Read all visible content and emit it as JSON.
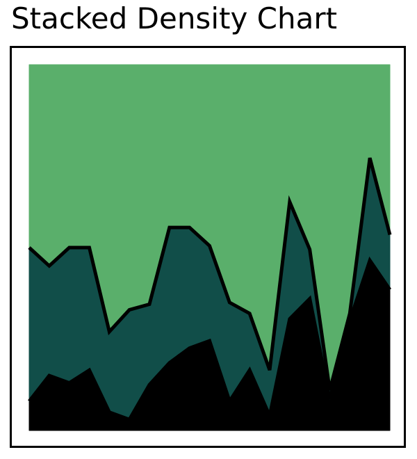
{
  "title": "Stacked Density Chart",
  "chart_data": {
    "type": "area",
    "title": "Stacked Density Chart",
    "stacked": true,
    "normalized": true,
    "xlabel": "",
    "ylabel": "",
    "x": [
      0,
      1,
      2,
      3,
      4,
      5,
      6,
      7,
      8,
      9,
      10,
      11,
      12,
      13,
      14,
      15,
      16,
      17,
      18
    ],
    "ylim": [
      0,
      1
    ],
    "grid": false,
    "axes_visible": false,
    "series": [
      {
        "values": [
          0.08,
          0.15,
          0.13,
          0.165,
          0.05,
          0.03,
          0.125,
          0.185,
          0.225,
          0.245,
          0.08,
          0.165,
          0.04,
          0.305,
          0.36,
          0.085,
          0.3,
          0.465,
          0.385
        ],
        "color": "#000000"
      },
      {
        "values": [
          0.42,
          0.3,
          0.37,
          0.335,
          0.22,
          0.3,
          0.22,
          0.37,
          0.33,
          0.26,
          0.27,
          0.155,
          0.125,
          0.32,
          0.135,
          0.025,
          0.02,
          0.28,
          0.15
        ],
        "color": "#114e49"
      },
      {
        "values": [
          0.5,
          0.55,
          0.5,
          0.5,
          0.73,
          0.67,
          0.655,
          0.445,
          0.445,
          0.495,
          0.65,
          0.68,
          0.835,
          0.375,
          0.505,
          0.89,
          0.68,
          0.255,
          0.465
        ],
        "color": "#5aaf6b"
      }
    ],
    "outline_color": "#000000"
  }
}
